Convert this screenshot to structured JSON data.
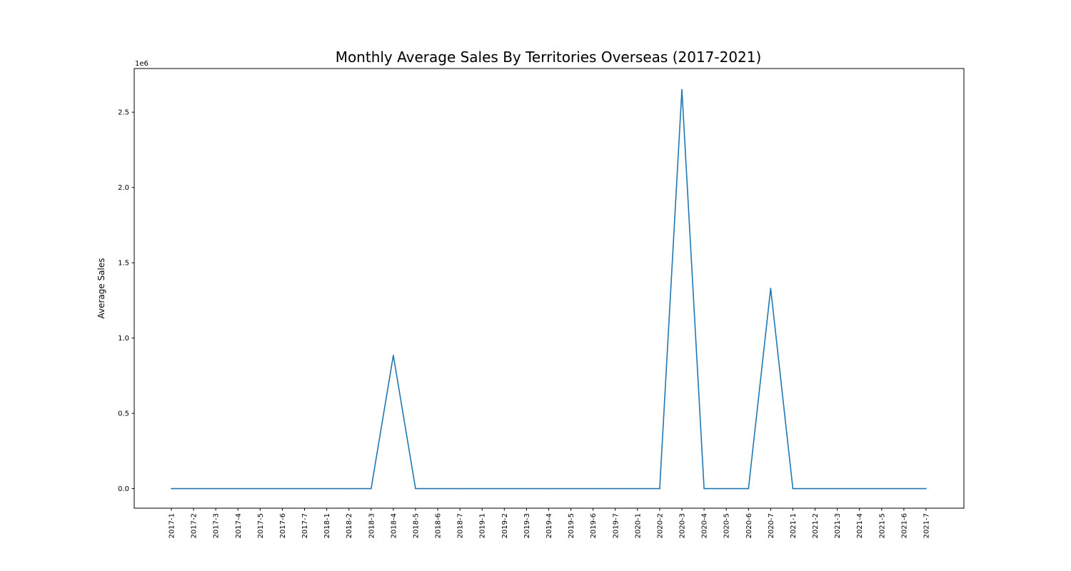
{
  "chart_data": {
    "type": "line",
    "title": "Monthly Average Sales By Territories Overseas (2017-2021)",
    "xlabel": "",
    "ylabel": "Average Sales",
    "y_offset_label": "1e6",
    "ylim": [
      -130000,
      2790000
    ],
    "yticks": [
      0.0,
      0.5,
      1.0,
      1.5,
      2.0,
      2.5
    ],
    "ytick_labels": [
      "0.0",
      "0.5",
      "1.0",
      "1.5",
      "2.0",
      "2.5"
    ],
    "ytick_scale": 1000000,
    "grid": false,
    "categories": [
      "2017-1",
      "2017-2",
      "2017-3",
      "2017-4",
      "2017-5",
      "2017-6",
      "2017-7",
      "2018-1",
      "2018-2",
      "2018-3",
      "2018-4",
      "2018-5",
      "2018-6",
      "2018-7",
      "2019-1",
      "2019-2",
      "2019-3",
      "2019-4",
      "2019-5",
      "2019-6",
      "2019-7",
      "2020-1",
      "2020-2",
      "2020-3",
      "2020-4",
      "2020-5",
      "2020-6",
      "2020-7",
      "2021-1",
      "2021-2",
      "2021-3",
      "2021-4",
      "2021-5",
      "2021-6",
      "2021-7"
    ],
    "series": [
      {
        "color": "#1f77b4",
        "values": [
          0,
          0,
          0,
          0,
          0,
          0,
          0,
          0,
          0,
          0,
          885000,
          0,
          0,
          0,
          0,
          0,
          0,
          0,
          0,
          0,
          0,
          0,
          0,
          2650000,
          0,
          0,
          0,
          1330000,
          0,
          0,
          0,
          0,
          0,
          0,
          0
        ]
      }
    ]
  }
}
